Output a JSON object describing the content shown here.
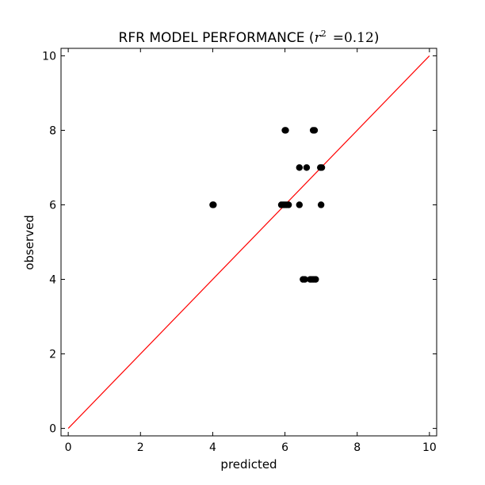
{
  "chart_data": {
    "type": "scatter",
    "title": "RFR MODEL PERFORMANCE",
    "title_math_var": "r",
    "title_math_exp": "2",
    "title_math_value": "=0.12",
    "xlabel": "predicted",
    "ylabel": "observed",
    "xlim": [
      -0.2,
      10.2
    ],
    "ylim": [
      -0.2,
      10.2
    ],
    "xticks": [
      0,
      2,
      4,
      6,
      8,
      10
    ],
    "yticks": [
      0,
      2,
      4,
      6,
      8,
      10
    ],
    "xtick_labels": [
      "0",
      "2",
      "4",
      "6",
      "8",
      "10"
    ],
    "ytick_labels": [
      "0",
      "2",
      "4",
      "6",
      "8",
      "10"
    ],
    "grid": false,
    "point_color": "#000000",
    "reference_line": {
      "from": [
        0,
        0
      ],
      "to": [
        10,
        10
      ],
      "color": "#ff0000"
    },
    "points": [
      {
        "x": 4.0,
        "y": 6
      },
      {
        "x": 4.02,
        "y": 6
      },
      {
        "x": 5.9,
        "y": 6
      },
      {
        "x": 5.95,
        "y": 6
      },
      {
        "x": 6.0,
        "y": 6
      },
      {
        "x": 6.05,
        "y": 6
      },
      {
        "x": 6.1,
        "y": 6
      },
      {
        "x": 6.4,
        "y": 6
      },
      {
        "x": 7.0,
        "y": 6
      },
      {
        "x": 6.0,
        "y": 8
      },
      {
        "x": 6.02,
        "y": 8
      },
      {
        "x": 6.78,
        "y": 8
      },
      {
        "x": 6.82,
        "y": 8
      },
      {
        "x": 6.4,
        "y": 7
      },
      {
        "x": 6.6,
        "y": 7
      },
      {
        "x": 6.98,
        "y": 7
      },
      {
        "x": 7.02,
        "y": 7
      },
      {
        "x": 6.5,
        "y": 4
      },
      {
        "x": 6.55,
        "y": 4
      },
      {
        "x": 6.7,
        "y": 4
      },
      {
        "x": 6.75,
        "y": 4
      },
      {
        "x": 6.8,
        "y": 4
      },
      {
        "x": 6.85,
        "y": 4
      }
    ]
  }
}
